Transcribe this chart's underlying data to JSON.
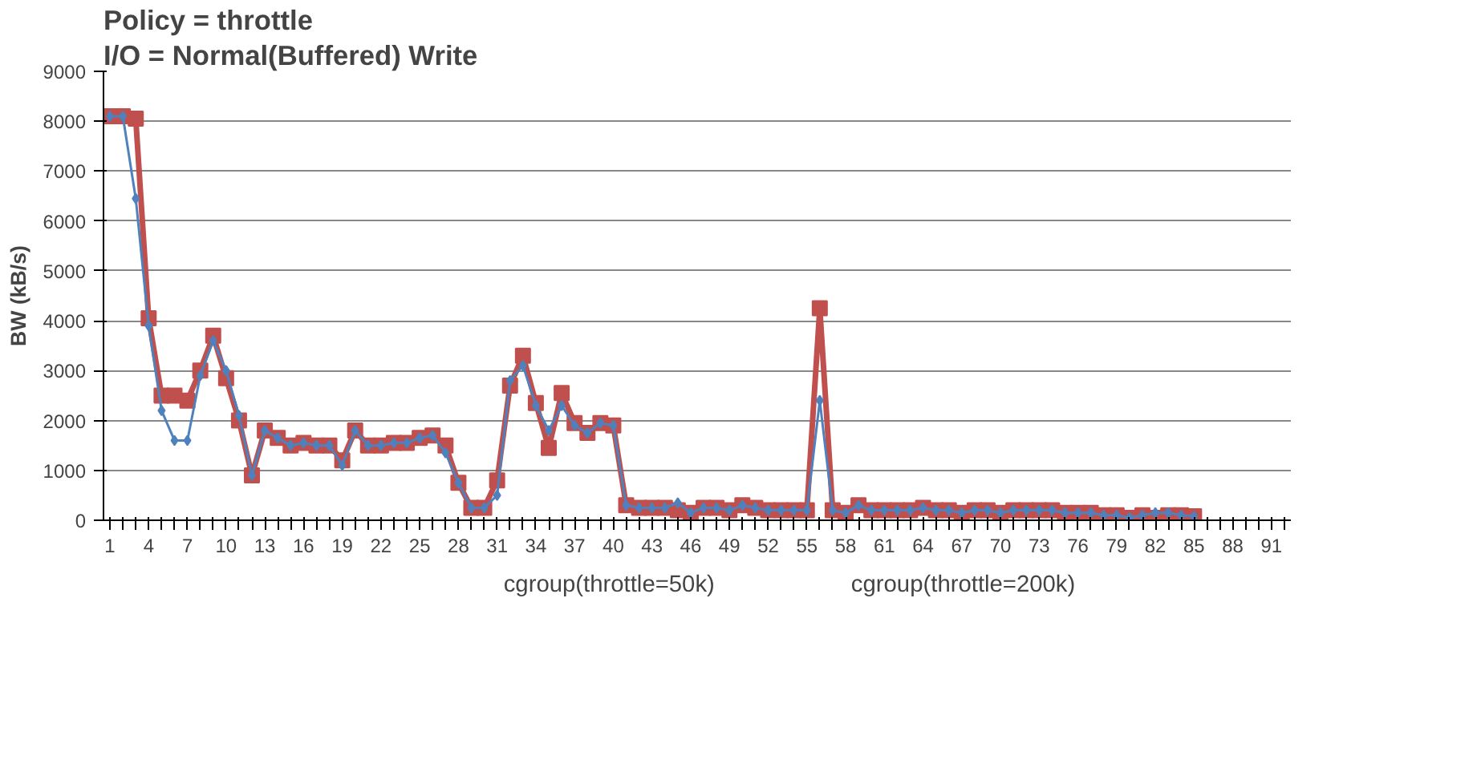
{
  "chart_data": {
    "type": "line",
    "title": "Policy = throttle",
    "subtitle": "I/O = Normal(Buffered) Write",
    "ylabel": "BW (kB/s)",
    "categories": [
      "1",
      null,
      null,
      "4",
      null,
      null,
      "7",
      null,
      null,
      "10",
      null,
      null,
      "13",
      null,
      null,
      "16",
      null,
      null,
      "19",
      null,
      null,
      "22",
      null,
      null,
      "25",
      null,
      null,
      "28",
      null,
      null,
      "31",
      null,
      null,
      "34",
      null,
      null,
      "37",
      null,
      null,
      "40",
      null,
      null,
      "43",
      null,
      null,
      "46",
      null,
      null,
      "49",
      null,
      null,
      "52",
      null,
      null,
      "55",
      null,
      null,
      "58",
      null,
      null,
      "61",
      null,
      null,
      "64",
      null,
      null,
      "67",
      null,
      null,
      "70",
      null,
      null,
      "73",
      null,
      null,
      "76",
      null,
      null,
      "79",
      null,
      null,
      "82",
      null,
      null,
      "85",
      null,
      null,
      "88",
      null,
      null,
      "91",
      null
    ],
    "ylim": [
      0,
      9000
    ],
    "yticks": [
      0,
      1000,
      2000,
      3000,
      4000,
      5000,
      6000,
      7000,
      8000,
      9000
    ],
    "grid": "y",
    "legend": "bottom",
    "line_style": "solid",
    "series": [
      {
        "name": "cgroup(throttle=50k)",
        "color": "#4f81bd",
        "marker": "diamond",
        "values": [
          8100,
          8100,
          6450,
          3900,
          2200,
          1600,
          1600,
          2900,
          3600,
          3000,
          2100,
          900,
          1800,
          1650,
          1500,
          1550,
          1500,
          1500,
          1100,
          1800,
          1500,
          1500,
          1550,
          1550,
          1650,
          1700,
          1350,
          750,
          250,
          250,
          500,
          2800,
          3100,
          2300,
          1800,
          2300,
          1900,
          1750,
          1950,
          1900,
          300,
          250,
          250,
          250,
          350,
          150,
          250,
          250,
          200,
          300,
          250,
          200,
          200,
          200,
          200,
          2400,
          200,
          150,
          300,
          200,
          200,
          200,
          200,
          250,
          200,
          200,
          150,
          200,
          200,
          150,
          200,
          200,
          200,
          200,
          150,
          150,
          150,
          100,
          100,
          50,
          100,
          150,
          150,
          100,
          80,
          null,
          null,
          null,
          null,
          null,
          null,
          null
        ]
      },
      {
        "name": "cgroup(throttle=200k)",
        "color": "#c0504d",
        "marker": "square",
        "values": [
          8100,
          8100,
          8050,
          4050,
          2500,
          2500,
          2400,
          3000,
          3700,
          2850,
          2000,
          900,
          1800,
          1650,
          1500,
          1550,
          1500,
          1500,
          1200,
          1800,
          1500,
          1500,
          1550,
          1550,
          1650,
          1700,
          1500,
          750,
          250,
          250,
          800,
          2700,
          3300,
          2350,
          1450,
          2550,
          1950,
          1750,
          1950,
          1900,
          300,
          250,
          250,
          250,
          200,
          150,
          250,
          250,
          200,
          300,
          250,
          200,
          200,
          200,
          200,
          4250,
          200,
          150,
          300,
          200,
          200,
          200,
          200,
          250,
          200,
          200,
          150,
          200,
          200,
          150,
          200,
          200,
          200,
          200,
          150,
          150,
          150,
          100,
          100,
          50,
          100,
          50,
          100,
          100,
          80,
          null,
          null,
          null,
          null,
          null,
          null,
          null
        ]
      }
    ]
  }
}
